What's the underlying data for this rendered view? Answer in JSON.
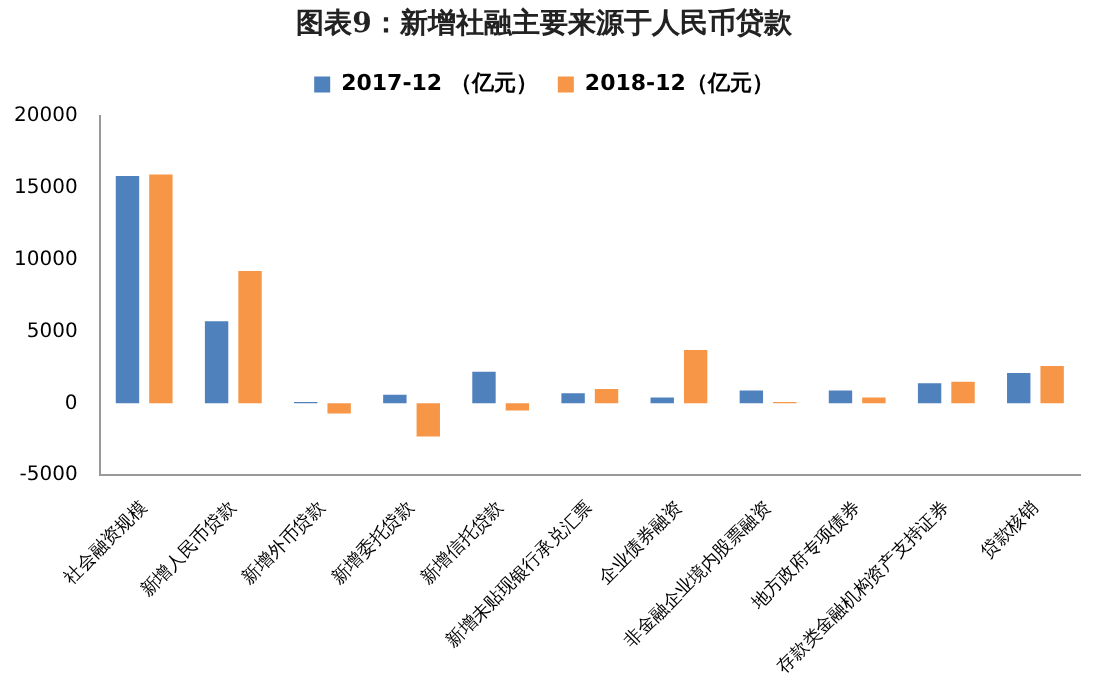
{
  "chart_data": {
    "type": "bar",
    "title": "图表9：新增社融主要来源于人民币贷款",
    "categories": [
      "社会融资规模",
      "新增人民币贷款",
      "新增外币贷款",
      "新增委托贷款",
      "新增信托贷款",
      "新增未贴现银行承兑汇票",
      "企业债券融资",
      "非金融企业境内股票融资",
      "地方政府专项债券",
      "存款类金融机构资产支持证券",
      "贷款核销"
    ],
    "series": [
      {
        "name": "2017-12 （亿元）",
        "color": "#4f81bd",
        "values": [
          15800,
          5700,
          100,
          600,
          2200,
          700,
          400,
          900,
          900,
          1400,
          2100
        ]
      },
      {
        "name": "2018-12（亿元）",
        "color": "#f79646",
        "values": [
          15900,
          9200,
          -700,
          -2300,
          -500,
          1000,
          3700,
          100,
          400,
          1500,
          2600
        ]
      }
    ],
    "ylim": [
      -5000,
      20000
    ],
    "yticks": [
      -5000,
      0,
      5000,
      10000,
      15000,
      20000
    ],
    "grid": false,
    "legend": "top"
  }
}
